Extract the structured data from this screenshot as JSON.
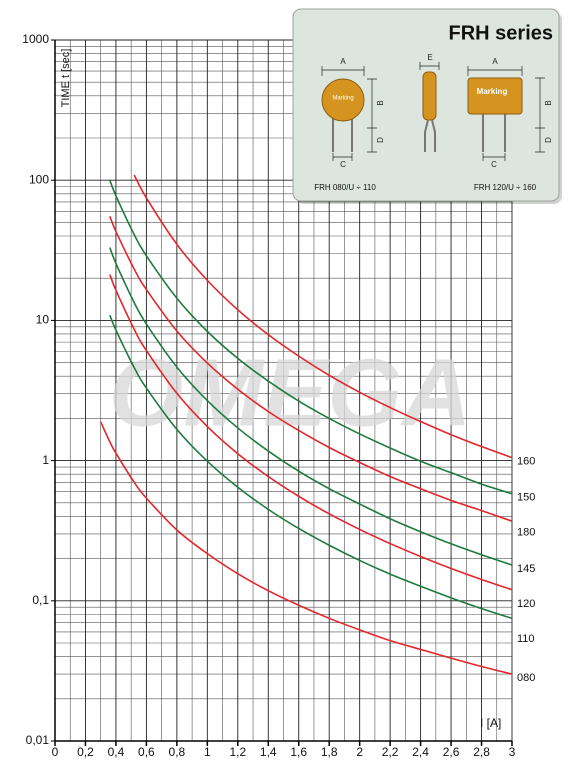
{
  "chart_data": {
    "type": "line",
    "ylabel": "TIME t [sec]",
    "xlabel": "I [A]",
    "watermark": "OMEGA",
    "y_scale": "log",
    "grid": true,
    "xlim": [
      0,
      3
    ],
    "ylim": [
      0.01,
      1000
    ],
    "xticks": [
      0,
      {
        "value": 0.2,
        "label": "0,2"
      },
      {
        "value": 0.4,
        "label": "0,4"
      },
      {
        "value": 0.6,
        "label": "0,6"
      },
      {
        "value": 0.8,
        "label": "0,8"
      },
      1,
      {
        "value": 1.2,
        "label": "1,2"
      },
      {
        "value": 1.4,
        "label": "1,4"
      },
      {
        "value": 1.6,
        "label": "1,6"
      },
      {
        "value": 1.8,
        "label": "1,8"
      },
      2,
      {
        "value": 2.2,
        "label": "2,2"
      },
      {
        "value": 2.4,
        "label": "2,4"
      },
      {
        "value": 2.6,
        "label": "2,6"
      },
      {
        "value": 2.8,
        "label": "2,8"
      },
      3
    ],
    "yticks": [
      {
        "value": 0.01,
        "label": "0,01"
      },
      {
        "value": 0.1,
        "label": "0,1"
      },
      1,
      10,
      100,
      1000
    ],
    "x": [
      0.3,
      0.36,
      0.4,
      0.52,
      0.6,
      0.8,
      1,
      1.2,
      1.4,
      1.6,
      1.8,
      2,
      2.2,
      2.4,
      2.6,
      2.8,
      3
    ],
    "series": [
      {
        "name": "160",
        "color": "#e3262b",
        "values": [
          null,
          null,
          null,
          109,
          74.7,
          34.9,
          19.3,
          11.9,
          7.91,
          5.56,
          4.06,
          3.07,
          2.39,
          1.9,
          1.53,
          1.26,
          1.05
        ]
      },
      {
        "name": "150",
        "color": "#1e7a3e",
        "values": [
          null,
          100,
          77.4,
          40.9,
          28.9,
          14.4,
          8.35,
          5.36,
          3.69,
          2.66,
          2.0,
          1.55,
          1.23,
          0.99,
          0.82,
          0.68,
          0.58
        ]
      },
      {
        "name": "180",
        "color": "#e3262b",
        "values": [
          null,
          55.3,
          43.1,
          23.2,
          16.6,
          8.4,
          4.96,
          3.23,
          2.24,
          1.64,
          1.24,
          0.97,
          0.77,
          0.63,
          0.52,
          0.44,
          0.37
        ]
      },
      {
        "name": "145",
        "color": "#1e7a3e",
        "values": [
          null,
          33.1,
          25.5,
          13.4,
          9.42,
          4.64,
          2.68,
          1.71,
          1.17,
          0.84,
          0.63,
          0.49,
          0.385,
          0.311,
          0.255,
          0.213,
          0.18
        ]
      },
      {
        "name": "120",
        "color": "#e3262b",
        "values": [
          null,
          21.2,
          16.4,
          8.63,
          6.09,
          3.02,
          1.75,
          1.12,
          0.77,
          0.556,
          0.417,
          0.323,
          0.256,
          0.207,
          0.17,
          0.142,
          0.12
        ]
      },
      {
        "name": "110",
        "color": "#1e7a3e",
        "values": [
          null,
          10.9,
          8.53,
          4.6,
          3.29,
          1.67,
          0.99,
          0.645,
          0.449,
          0.328,
          0.249,
          0.194,
          0.155,
          0.127,
          0.105,
          0.088,
          0.075
        ]
      },
      {
        "name": "080",
        "color": "#e3262b",
        "values": [
          1.89,
          1.36,
          1.13,
          0.7,
          0.54,
          0.32,
          0.217,
          0.156,
          0.118,
          0.093,
          0.075,
          0.062,
          0.052,
          0.045,
          0.039,
          0.034,
          0.03
        ]
      }
    ]
  },
  "inset": {
    "title": "FRH series",
    "left": {
      "caption": "FRH 080/U ÷ 110",
      "marking": "Marking",
      "dim_a": "A",
      "dim_b": "B",
      "dim_d": "D",
      "dim_c": "C"
    },
    "middle": {
      "dim_e": "E"
    },
    "right": {
      "caption": "FRH 120/U ÷ 160",
      "marking": "Marking",
      "dim_a": "A",
      "dim_b": "B",
      "dim_d": "D",
      "dim_c": "C"
    }
  }
}
